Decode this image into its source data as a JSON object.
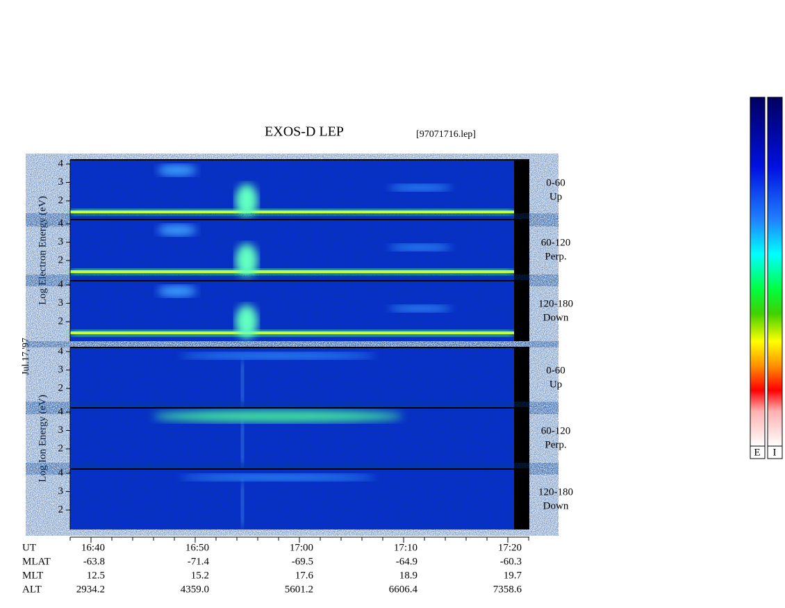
{
  "title": "EXOS-D LEP",
  "file": "[97071716.lep]",
  "date": "Jul.17,'97",
  "panels": [
    {
      "ylabel": "Log  Electron  Energy (eV)",
      "subpanels": [
        {
          "ticks": [
            4,
            3,
            2
          ],
          "range": "0-60",
          "direction": "Up"
        },
        {
          "ticks": [
            4,
            3,
            2
          ],
          "range": "60-120",
          "direction": "Perp."
        },
        {
          "ticks": [
            4,
            3,
            2
          ],
          "range": "120-180",
          "direction": "Down"
        }
      ]
    },
    {
      "ylabel": "Log  Ion  Energy (eV)",
      "subpanels": [
        {
          "ticks": [
            4,
            3,
            2
          ],
          "range": "0-60",
          "direction": "Up"
        },
        {
          "ticks": [
            4,
            3,
            2
          ],
          "range": "60-120",
          "direction": "Perp."
        },
        {
          "ticks": [
            4,
            3,
            2
          ],
          "range": "120-180",
          "direction": "Down"
        }
      ]
    }
  ],
  "time_axis": {
    "rows": [
      {
        "name": "UT",
        "values": [
          "16:40",
          "16:50",
          "17:00",
          "17:10",
          "17:20"
        ]
      },
      {
        "name": "MLAT",
        "values": [
          "-63.8",
          "-71.4",
          "-69.5",
          "-64.9",
          "-60.3"
        ]
      },
      {
        "name": "MLT",
        "values": [
          "12.5",
          "15.2",
          "17.6",
          "18.9",
          "19.7"
        ]
      },
      {
        "name": "ALT",
        "values": [
          "2934.2",
          "4359.0",
          "5601.2",
          "6606.4",
          "7358.6"
        ]
      }
    ]
  },
  "colorbar": {
    "labels": [
      "E",
      "I"
    ]
  }
}
